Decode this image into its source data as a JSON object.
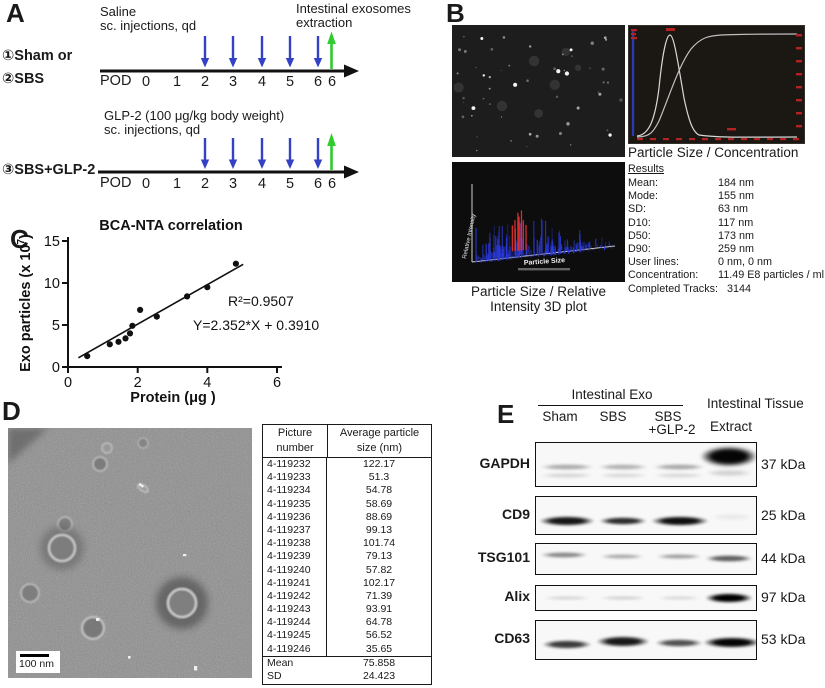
{
  "colors": {
    "arrow_blue": "#3342c4",
    "arrow_green": "#2ecc2e",
    "nta_red": "#b42222"
  },
  "figure": {
    "panelA": {
      "label": "A",
      "top": {
        "drug": "Saline",
        "route": "sc. injections, qd",
        "extract_line1": "Intestinal exosomes",
        "extract_line2": "extraction",
        "group1": "①Sham or",
        "group2": "②SBS",
        "axis": "POD",
        "ticks": [
          "0",
          "1",
          "2",
          "3",
          "4",
          "5",
          "6",
          "6"
        ]
      },
      "bottom": {
        "drug": "GLP-2 (100 μg/kg body weight)",
        "route": "sc. injections, qd",
        "group1": "③SBS+GLP-2",
        "axis": "POD",
        "ticks": [
          "0",
          "1",
          "2",
          "3",
          "4",
          "5",
          "6",
          "6"
        ]
      }
    },
    "panelB": {
      "label": "B",
      "nta_caption": "Particle Size / Concentration",
      "results_title": "Results",
      "results": [
        {
          "k": "Mean:",
          "v": "184 nm"
        },
        {
          "k": "Mode:",
          "v": "155 nm"
        },
        {
          "k": "SD:",
          "v": "63 nm"
        },
        {
          "k": "D10:",
          "v": "117 nm"
        },
        {
          "k": "D50:",
          "v": "173 nm"
        },
        {
          "k": "D90:",
          "v": "259 nm"
        },
        {
          "k": "User lines:",
          "v": "0 nm, 0 nm"
        },
        {
          "k": "Concentration:",
          "v": "11.49 E8 particles / ml"
        },
        {
          "k": "Completed Tracks:",
          "v": "3144"
        }
      ],
      "plot3d": {
        "ylabel": "Relative Intensity",
        "xlabel": "Particle Size",
        "caption_line1": "Particle Size / Relative",
        "caption_line2": "Intensity 3D plot"
      }
    },
    "panelC": {
      "label": "C",
      "title": "BCA-NTA correlation",
      "ylabel_main": "Exo particles (x 10",
      "ylabel_sup": "7",
      "ylabel_close": ")",
      "xlabel": "Protein (μg )",
      "yticks": [
        "15",
        "10",
        "5",
        "0"
      ],
      "xticks": [
        "0",
        "2",
        "4",
        "6"
      ],
      "r2": "R²=0.9507",
      "equation": "Y=2.352*X + 0.3910"
    },
    "panelD": {
      "label": "D",
      "scalebar": "100 nm",
      "table": {
        "col1_line1": "Picture",
        "col1_line2": "number",
        "col2_line1": "Average particle",
        "col2_line2": "size (nm)",
        "rows": [
          [
            "4-119232",
            "122.17"
          ],
          [
            "4-119233",
            "51.3"
          ],
          [
            "4-119234",
            "54.78"
          ],
          [
            "4-119235",
            "58.69"
          ],
          [
            "4-119236",
            "88.69"
          ],
          [
            "4-119237",
            "99.13"
          ],
          [
            "4-119238",
            "101.74"
          ],
          [
            "4-119239",
            "79.13"
          ],
          [
            "4-119240",
            "57.82"
          ],
          [
            "4-119241",
            "102.17"
          ],
          [
            "4-119242",
            "71.39"
          ],
          [
            "4-119243",
            "93.91"
          ],
          [
            "4-119244",
            "64.78"
          ],
          [
            "4-119245",
            "56.52"
          ],
          [
            "4-119246",
            "35.65"
          ]
        ],
        "footer": [
          [
            "Mean",
            "75.858"
          ],
          [
            "SD",
            "24.423"
          ]
        ]
      }
    },
    "panelE": {
      "label": "E",
      "group_header": "Intestinal Exo",
      "lane1": "Sham",
      "lane2": "SBS",
      "lane3_line1": "SBS",
      "lane3_line2": "+GLP-2",
      "tissue_line1": "Intestinal Tissue",
      "tissue_line2": "Extract",
      "blots": [
        {
          "protein": "GAPDH",
          "kda": "37 kDa"
        },
        {
          "protein": "CD9",
          "kda": "25 kDa"
        },
        {
          "protein": "TSG101",
          "kda": "44 kDa"
        },
        {
          "protein": "Alix",
          "kda": "97 kDa"
        },
        {
          "protein": "CD63",
          "kda": "53 kDa"
        }
      ]
    }
  },
  "chart_data": [
    {
      "id": "panelC_scatter",
      "type": "scatter",
      "title": "BCA-NTA correlation",
      "xlabel": "Protein (μg)",
      "ylabel": "Exo particles (x 10^7)",
      "xlim": [
        0,
        6
      ],
      "ylim": [
        0,
        15
      ],
      "xticks": [
        0,
        2,
        4,
        6
      ],
      "yticks": [
        0,
        5,
        10,
        15
      ],
      "x": [
        0.55,
        1.2,
        1.45,
        1.65,
        1.78,
        1.85,
        2.07,
        2.55,
        3.42,
        4.0,
        4.82
      ],
      "y": [
        1.3,
        2.7,
        3.0,
        3.4,
        4.0,
        4.9,
        6.8,
        6.0,
        8.4,
        9.5,
        12.3
      ],
      "fit_line": {
        "slope": 2.352,
        "intercept": 0.391,
        "r2": 0.9507,
        "equation": "Y=2.352*X + 0.3910"
      },
      "grid": false,
      "legend": false
    },
    {
      "id": "panelB_nta_distribution",
      "type": "line",
      "title": "Particle Size / Concentration",
      "series": [
        {
          "name": "size distribution",
          "peak_nm": 155
        },
        {
          "name": "cumulative concentration"
        }
      ],
      "summary": {
        "mean_nm": 184,
        "mode_nm": 155,
        "sd_nm": 63,
        "d10_nm": 117,
        "d50_nm": 173,
        "d90_nm": 259,
        "concentration": "11.49 E8 particles / ml",
        "completed_tracks": 3144
      }
    },
    {
      "id": "panelD_particle_table",
      "type": "table",
      "columns": [
        "Picture number",
        "Average particle size (nm)"
      ],
      "rows": [
        [
          "4-119232",
          122.17
        ],
        [
          "4-119233",
          51.3
        ],
        [
          "4-119234",
          54.78
        ],
        [
          "4-119235",
          58.69
        ],
        [
          "4-119236",
          88.69
        ],
        [
          "4-119237",
          99.13
        ],
        [
          "4-119238",
          101.74
        ],
        [
          "4-119239",
          79.13
        ],
        [
          "4-119240",
          57.82
        ],
        [
          "4-119241",
          102.17
        ],
        [
          "4-119242",
          71.39
        ],
        [
          "4-119243",
          93.91
        ],
        [
          "4-119244",
          64.78
        ],
        [
          "4-119245",
          56.52
        ],
        [
          "4-119246",
          35.65
        ]
      ],
      "summary": {
        "Mean": 75.858,
        "SD": 24.423
      }
    }
  ]
}
